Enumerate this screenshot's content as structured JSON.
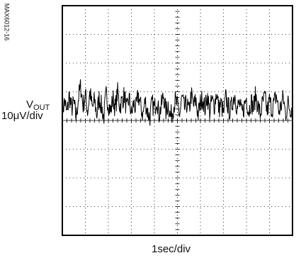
{
  "chart_data": {
    "type": "line",
    "title": "",
    "part_number": "MAX6012-16",
    "ylabel": {
      "symbol": "V",
      "subscript": "OUT",
      "scale": "10μV/div"
    },
    "xlabel": "1sec/div",
    "grid": true,
    "x_divisions": 10,
    "y_divisions": 8,
    "baseline_division": 4,
    "xlim": [
      0,
      10
    ],
    "ylim": [
      -4,
      4
    ],
    "x_units": "sec",
    "y_units": "divisions of 10μV",
    "series": [
      {
        "style": "noise trace",
        "x": [
          0.0,
          0.1,
          0.2,
          0.3,
          0.4,
          0.5,
          0.6,
          0.7,
          0.8,
          0.9,
          1.0,
          1.1,
          1.2,
          1.3,
          1.4,
          1.5,
          1.6,
          1.7,
          1.8,
          1.9,
          2.0,
          2.1,
          2.2,
          2.3,
          2.4,
          2.5,
          2.6,
          2.7,
          2.8,
          2.9,
          3.0,
          3.1,
          3.2,
          3.3,
          3.4,
          3.5,
          3.6,
          3.7,
          3.8,
          3.9,
          4.0,
          4.1,
          4.2,
          4.3,
          4.4,
          4.5,
          4.6,
          4.7,
          4.8,
          4.9,
          5.0,
          5.1,
          5.2,
          5.3,
          5.4,
          5.5,
          5.6,
          5.7,
          5.8,
          5.9,
          6.0,
          6.1,
          6.2,
          6.3,
          6.4,
          6.5,
          6.6,
          6.7,
          6.8,
          6.9,
          7.0,
          7.1,
          7.2,
          7.3,
          7.4,
          7.5,
          7.6,
          7.7,
          7.8,
          7.9,
          8.0,
          8.1,
          8.2,
          8.3,
          8.4,
          8.5,
          8.6,
          8.7,
          8.8,
          8.9,
          9.0,
          9.1,
          9.2,
          9.3,
          9.4,
          9.5,
          9.6,
          9.7,
          9.8,
          9.9,
          10.0
        ],
        "y": [
          0.3,
          0.7,
          0.2,
          0.9,
          0.4,
          0.6,
          0.1,
          0.8,
          1.2,
          0.5,
          0.9,
          0.3,
          1.0,
          0.4,
          0.7,
          0.2,
          0.8,
          0.5,
          0.1,
          0.9,
          0.6,
          0.3,
          0.8,
          0.4,
          1.0,
          0.5,
          0.7,
          0.9,
          0.3,
          0.8,
          0.2,
          0.6,
          0.4,
          0.9,
          0.5,
          0.2,
          0.7,
          0.3,
          0.1,
          0.6,
          0.4,
          0.8,
          0.2,
          0.5,
          0.9,
          0.3,
          0.6,
          0.1,
          0.4,
          0.7,
          0.5,
          0.2,
          0.8,
          0.4,
          0.6,
          0.3,
          0.9,
          0.5,
          0.7,
          0.2,
          0.6,
          0.8,
          0.4,
          0.9,
          0.3,
          0.7,
          0.5,
          1.0,
          0.4,
          0.6,
          0.2,
          0.8,
          0.5,
          0.3,
          0.7,
          0.9,
          0.4,
          0.6,
          0.2,
          0.5,
          0.8,
          0.3,
          0.7,
          0.4,
          0.9,
          0.5,
          0.2,
          0.6,
          0.8,
          0.3,
          0.7,
          0.4,
          0.6,
          0.9,
          0.3,
          0.5,
          0.8,
          0.2,
          0.6,
          0.4,
          0.5
        ]
      }
    ]
  }
}
